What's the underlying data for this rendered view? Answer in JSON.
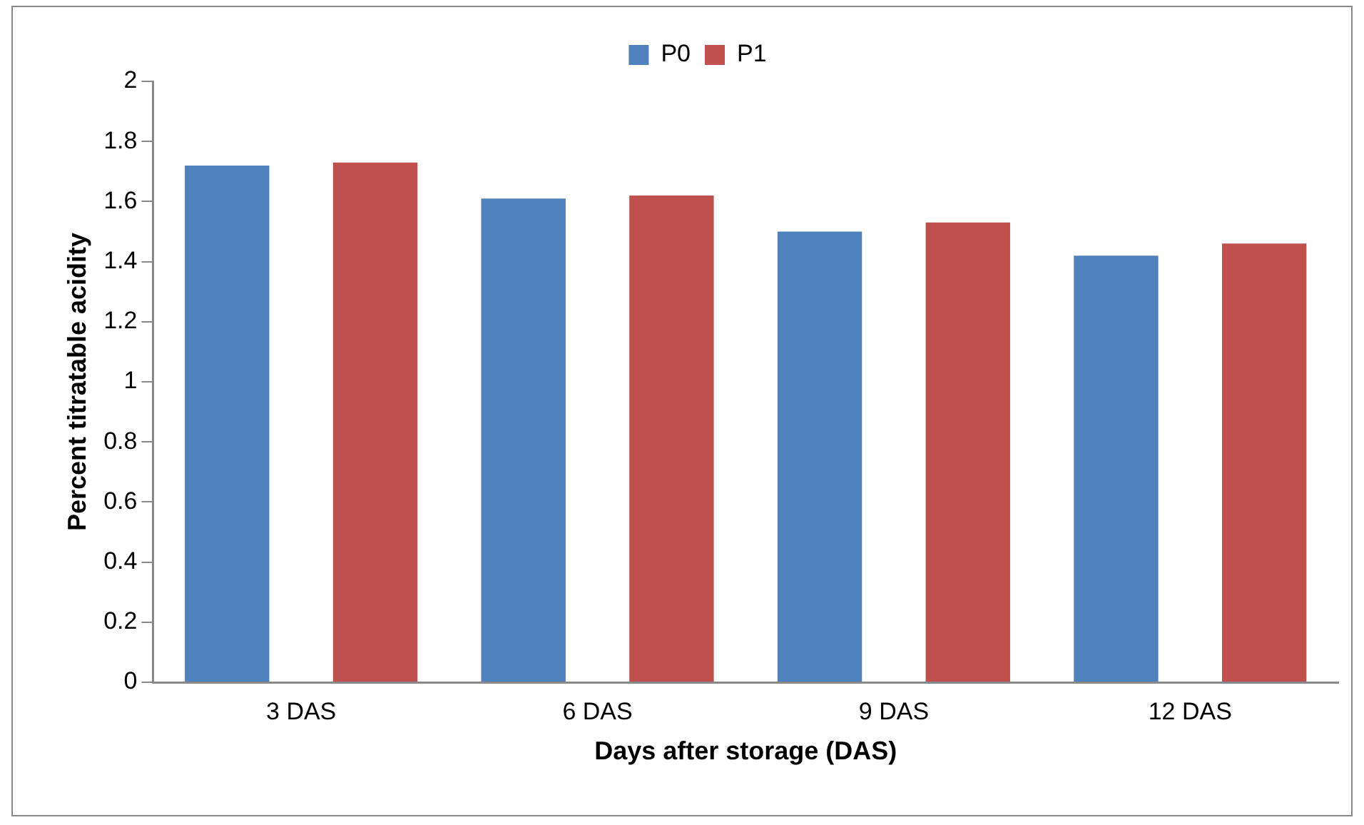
{
  "chart_data": {
    "type": "bar",
    "xlabel": "Days after storage (DAS)",
    "ylabel": "Percent titratable acidity",
    "categories": [
      "3 DAS",
      "6 DAS",
      "9 DAS",
      "12 DAS"
    ],
    "series": [
      {
        "name": "P0",
        "color": "#4f81bd",
        "values": [
          1.72,
          1.61,
          1.5,
          1.42
        ]
      },
      {
        "name": "P1",
        "color": "#c0504d",
        "values": [
          1.73,
          1.62,
          1.53,
          1.46
        ]
      }
    ],
    "ylim": [
      0,
      2
    ],
    "yticks": [
      0,
      0.2,
      0.4,
      0.6,
      0.8,
      1,
      1.2,
      1.4,
      1.6,
      1.8,
      2
    ],
    "grid": false,
    "legend": "top"
  }
}
